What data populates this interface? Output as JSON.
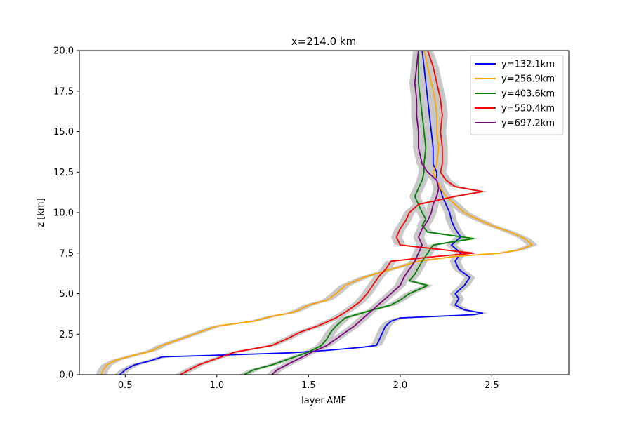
{
  "chart_data": {
    "type": "line",
    "title": "x=214.0 km",
    "xlabel": "layer-AMF",
    "ylabel": "z [km]",
    "xlim": [
      0.25,
      2.92
    ],
    "ylim": [
      0,
      20
    ],
    "xticks": [
      "0.5",
      "1.0",
      "1.5",
      "2.0",
      "2.5"
    ],
    "yticks": [
      "0.0",
      "2.5",
      "5.0",
      "7.5",
      "10.0",
      "12.5",
      "15.0",
      "17.5",
      "20.0"
    ],
    "grid": false,
    "legend_position": "top-right",
    "uncertainty_band_color": "#c8c8c8",
    "series": [
      {
        "name": "y=132.1km",
        "color": "#0000ff",
        "points": [
          [
            0.47,
            0.0
          ],
          [
            0.5,
            0.3
          ],
          [
            0.55,
            0.6
          ],
          [
            0.65,
            0.9
          ],
          [
            0.7,
            1.1
          ],
          [
            1.0,
            1.2
          ],
          [
            1.4,
            1.35
          ],
          [
            1.6,
            1.5
          ],
          [
            1.8,
            1.7
          ],
          [
            1.87,
            1.8
          ],
          [
            1.88,
            2.0
          ],
          [
            1.9,
            2.5
          ],
          [
            1.92,
            3.0
          ],
          [
            1.95,
            3.3
          ],
          [
            2.0,
            3.5
          ],
          [
            2.2,
            3.6
          ],
          [
            2.4,
            3.7
          ],
          [
            2.45,
            3.8
          ],
          [
            2.35,
            4.0
          ],
          [
            2.3,
            4.3
          ],
          [
            2.32,
            4.7
          ],
          [
            2.3,
            5.0
          ],
          [
            2.35,
            5.5
          ],
          [
            2.38,
            6.0
          ],
          [
            2.32,
            6.5
          ],
          [
            2.3,
            7.0
          ],
          [
            2.33,
            7.5
          ],
          [
            2.28,
            8.0
          ],
          [
            2.33,
            8.5
          ],
          [
            2.3,
            9.0
          ],
          [
            2.28,
            9.5
          ],
          [
            2.27,
            10.0
          ],
          [
            2.25,
            10.5
          ],
          [
            2.23,
            11.0
          ],
          [
            2.22,
            11.5
          ],
          [
            2.2,
            12.0
          ],
          [
            2.2,
            12.5
          ],
          [
            2.18,
            13.0
          ],
          [
            2.18,
            14.0
          ],
          [
            2.17,
            15.0
          ],
          [
            2.16,
            16.0
          ],
          [
            2.15,
            17.0
          ],
          [
            2.14,
            18.0
          ],
          [
            2.13,
            19.0
          ],
          [
            2.12,
            20.0
          ]
        ]
      },
      {
        "name": "y=256.9km",
        "color": "#ffa500",
        "points": [
          [
            0.37,
            0.0
          ],
          [
            0.38,
            0.3
          ],
          [
            0.4,
            0.6
          ],
          [
            0.45,
            0.9
          ],
          [
            0.55,
            1.2
          ],
          [
            0.65,
            1.5
          ],
          [
            0.7,
            1.8
          ],
          [
            0.8,
            2.2
          ],
          [
            0.9,
            2.6
          ],
          [
            1.0,
            3.0
          ],
          [
            1.2,
            3.3
          ],
          [
            1.3,
            3.6
          ],
          [
            1.4,
            3.8
          ],
          [
            1.45,
            4.0
          ],
          [
            1.5,
            4.3
          ],
          [
            1.6,
            4.6
          ],
          [
            1.65,
            5.0
          ],
          [
            1.7,
            5.5
          ],
          [
            1.8,
            6.0
          ],
          [
            1.95,
            6.5
          ],
          [
            2.1,
            7.0
          ],
          [
            2.3,
            7.3
          ],
          [
            2.55,
            7.5
          ],
          [
            2.65,
            7.7
          ],
          [
            2.72,
            8.0
          ],
          [
            2.68,
            8.4
          ],
          [
            2.6,
            8.8
          ],
          [
            2.5,
            9.2
          ],
          [
            2.42,
            9.6
          ],
          [
            2.35,
            10.0
          ],
          [
            2.3,
            10.5
          ],
          [
            2.25,
            11.0
          ],
          [
            2.22,
            11.5
          ],
          [
            2.2,
            12.0
          ],
          [
            2.18,
            12.5
          ],
          [
            2.2,
            13.0
          ],
          [
            2.21,
            14.0
          ],
          [
            2.2,
            15.0
          ],
          [
            2.2,
            16.0
          ],
          [
            2.19,
            17.0
          ],
          [
            2.17,
            18.0
          ],
          [
            2.15,
            19.0
          ],
          [
            2.13,
            20.0
          ]
        ]
      },
      {
        "name": "y=403.6km",
        "color": "#008000",
        "points": [
          [
            1.15,
            0.0
          ],
          [
            1.2,
            0.3
          ],
          [
            1.3,
            0.6
          ],
          [
            1.4,
            1.0
          ],
          [
            1.5,
            1.4
          ],
          [
            1.57,
            1.8
          ],
          [
            1.6,
            2.2
          ],
          [
            1.62,
            2.6
          ],
          [
            1.65,
            3.0
          ],
          [
            1.7,
            3.5
          ],
          [
            1.85,
            4.0
          ],
          [
            1.95,
            4.3
          ],
          [
            2.0,
            4.6
          ],
          [
            2.05,
            5.0
          ],
          [
            2.15,
            5.5
          ],
          [
            2.05,
            5.8
          ],
          [
            2.08,
            6.2
          ],
          [
            2.1,
            6.6
          ],
          [
            2.12,
            7.0
          ],
          [
            2.15,
            7.5
          ],
          [
            2.18,
            8.0
          ],
          [
            2.4,
            8.4
          ],
          [
            2.15,
            8.8
          ],
          [
            2.12,
            9.2
          ],
          [
            2.14,
            9.6
          ],
          [
            2.12,
            10.0
          ],
          [
            2.1,
            10.5
          ],
          [
            2.08,
            11.0
          ],
          [
            2.1,
            11.5
          ],
          [
            2.12,
            12.0
          ],
          [
            2.13,
            12.5
          ],
          [
            2.13,
            13.0
          ],
          [
            2.14,
            14.0
          ],
          [
            2.13,
            15.0
          ],
          [
            2.12,
            16.0
          ],
          [
            2.11,
            17.0
          ],
          [
            2.1,
            18.0
          ],
          [
            2.1,
            19.0
          ],
          [
            2.1,
            20.0
          ]
        ]
      },
      {
        "name": "y=550.4km",
        "color": "#ff0000",
        "points": [
          [
            0.8,
            0.0
          ],
          [
            0.85,
            0.3
          ],
          [
            0.9,
            0.6
          ],
          [
            1.0,
            1.0
          ],
          [
            1.1,
            1.4
          ],
          [
            1.3,
            1.8
          ],
          [
            1.38,
            2.2
          ],
          [
            1.45,
            2.6
          ],
          [
            1.55,
            3.0
          ],
          [
            1.65,
            3.5
          ],
          [
            1.72,
            4.0
          ],
          [
            1.78,
            4.5
          ],
          [
            1.82,
            5.0
          ],
          [
            1.85,
            5.5
          ],
          [
            1.88,
            6.0
          ],
          [
            1.92,
            6.5
          ],
          [
            1.95,
            7.0
          ],
          [
            2.2,
            7.3
          ],
          [
            2.4,
            7.5
          ],
          [
            2.0,
            8.0
          ],
          [
            1.98,
            8.5
          ],
          [
            2.0,
            9.0
          ],
          [
            2.03,
            9.5
          ],
          [
            2.05,
            10.0
          ],
          [
            2.1,
            10.5
          ],
          [
            2.3,
            11.0
          ],
          [
            2.45,
            11.3
          ],
          [
            2.3,
            11.6
          ],
          [
            2.25,
            12.0
          ],
          [
            2.22,
            12.5
          ],
          [
            2.23,
            13.0
          ],
          [
            2.23,
            14.0
          ],
          [
            2.22,
            15.0
          ],
          [
            2.23,
            16.0
          ],
          [
            2.22,
            17.0
          ],
          [
            2.2,
            18.0
          ],
          [
            2.18,
            19.0
          ],
          [
            2.15,
            20.0
          ]
        ]
      },
      {
        "name": "y=697.2km",
        "color": "#800080",
        "points": [
          [
            1.3,
            0.0
          ],
          [
            1.33,
            0.3
          ],
          [
            1.38,
            0.6
          ],
          [
            1.45,
            1.0
          ],
          [
            1.52,
            1.4
          ],
          [
            1.6,
            1.8
          ],
          [
            1.65,
            2.2
          ],
          [
            1.7,
            2.6
          ],
          [
            1.75,
            3.0
          ],
          [
            1.8,
            3.5
          ],
          [
            1.85,
            4.0
          ],
          [
            1.9,
            4.5
          ],
          [
            1.95,
            5.0
          ],
          [
            2.0,
            5.5
          ],
          [
            2.02,
            6.0
          ],
          [
            2.05,
            6.5
          ],
          [
            2.08,
            7.0
          ],
          [
            2.1,
            7.5
          ],
          [
            2.12,
            8.0
          ],
          [
            2.1,
            8.5
          ],
          [
            2.12,
            9.0
          ],
          [
            2.15,
            9.5
          ],
          [
            2.17,
            10.0
          ],
          [
            2.18,
            10.5
          ],
          [
            2.2,
            11.0
          ],
          [
            2.21,
            11.5
          ],
          [
            2.2,
            12.0
          ],
          [
            2.15,
            12.5
          ],
          [
            2.12,
            13.0
          ],
          [
            2.1,
            14.0
          ],
          [
            2.1,
            15.0
          ],
          [
            2.09,
            16.0
          ],
          [
            2.09,
            17.0
          ],
          [
            2.08,
            18.0
          ],
          [
            2.09,
            19.0
          ],
          [
            2.1,
            20.0
          ]
        ]
      }
    ]
  }
}
